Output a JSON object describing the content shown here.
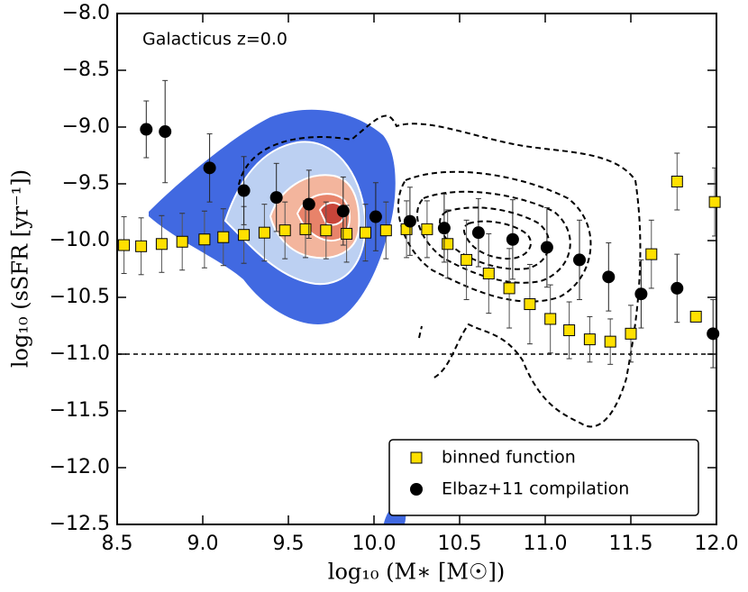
{
  "chart_data": {
    "type": "errorbar",
    "annotation": "Galacticus z=0.0",
    "xlabel": "log₁₀ (M∗ [M☉])",
    "ylabel": "log₁₀ (sSFR [yr⁻¹])",
    "xlim": [
      8.5,
      12.0
    ],
    "ylim": [
      -12.5,
      -8.0
    ],
    "xticks": [
      {
        "value": 8.5,
        "label": "8.5"
      },
      {
        "value": 9.0,
        "label": "9.0"
      },
      {
        "value": 9.5,
        "label": "9.5"
      },
      {
        "value": 10.0,
        "label": "10.0"
      },
      {
        "value": 10.5,
        "label": "10.5"
      },
      {
        "value": 11.0,
        "label": "11.0"
      },
      {
        "value": 11.5,
        "label": "11.5"
      },
      {
        "value": 12.0,
        "label": "12.0"
      }
    ],
    "yticks": [
      {
        "value": -12.5,
        "label": "−12.5"
      },
      {
        "value": -12.0,
        "label": "−12.0"
      },
      {
        "value": -11.5,
        "label": "−11.5"
      },
      {
        "value": -11.0,
        "label": "−11.0"
      },
      {
        "value": -10.5,
        "label": "−10.5"
      },
      {
        "value": -10.0,
        "label": "−10.0"
      },
      {
        "value": -9.5,
        "label": "−9.5"
      },
      {
        "value": -9.0,
        "label": "−9.0"
      },
      {
        "value": -8.5,
        "label": "−8.5"
      },
      {
        "value": -8.0,
        "label": "−8.0"
      }
    ],
    "hline": -11.0,
    "legend": "lower right",
    "series": [
      {
        "name": "binned function",
        "marker": "square",
        "color": "#ffe000",
        "x": [
          8.54,
          8.64,
          8.76,
          8.88,
          9.01,
          9.12,
          9.24,
          9.36,
          9.48,
          9.6,
          9.72,
          9.84,
          9.95,
          10.07,
          10.19,
          10.31,
          10.43,
          10.54,
          10.67,
          10.79,
          10.91,
          11.03,
          11.14,
          11.26,
          11.38,
          11.5,
          11.62,
          11.77,
          11.88,
          11.99
        ],
        "values": [
          -10.04,
          -10.05,
          -10.03,
          -10.01,
          -9.99,
          -9.97,
          -9.95,
          -9.93,
          -9.91,
          -9.9,
          -9.91,
          -9.94,
          -9.93,
          -9.91,
          -9.9,
          -9.9,
          -10.03,
          -10.17,
          -10.29,
          -10.42,
          -10.56,
          -10.69,
          -10.79,
          -10.87,
          -10.89,
          -10.82,
          -10.12,
          -9.48,
          -10.67,
          -9.66
        ],
        "errors": [
          0.25,
          0.25,
          0.25,
          0.25,
          0.25,
          0.25,
          0.25,
          0.25,
          0.25,
          0.25,
          0.25,
          0.25,
          0.25,
          0.25,
          0.25,
          0.25,
          0.3,
          0.35,
          0.35,
          0.35,
          0.35,
          0.3,
          0.25,
          0.2,
          0.2,
          0.25,
          0.3,
          0.25,
          0.02,
          0.3
        ]
      },
      {
        "name": "Elbaz+11 compilation",
        "marker": "circle",
        "color": "#000000",
        "x": [
          8.67,
          8.78,
          9.04,
          9.24,
          9.43,
          9.62,
          9.82,
          10.01,
          10.21,
          10.41,
          10.61,
          10.81,
          11.01,
          11.2,
          11.37,
          11.56,
          11.77,
          11.98
        ],
        "values": [
          -9.02,
          -9.04,
          -9.36,
          -9.56,
          -9.62,
          -9.68,
          -9.74,
          -9.79,
          -9.83,
          -9.89,
          -9.93,
          -9.99,
          -10.06,
          -10.17,
          -10.32,
          -10.47,
          -10.42,
          -10.82
        ],
        "errors": [
          0.25,
          0.45,
          0.3,
          0.3,
          0.3,
          0.3,
          0.3,
          0.3,
          0.3,
          0.3,
          0.3,
          0.35,
          0.35,
          0.35,
          0.3,
          0.3,
          0.3,
          0.3
        ]
      }
    ]
  }
}
